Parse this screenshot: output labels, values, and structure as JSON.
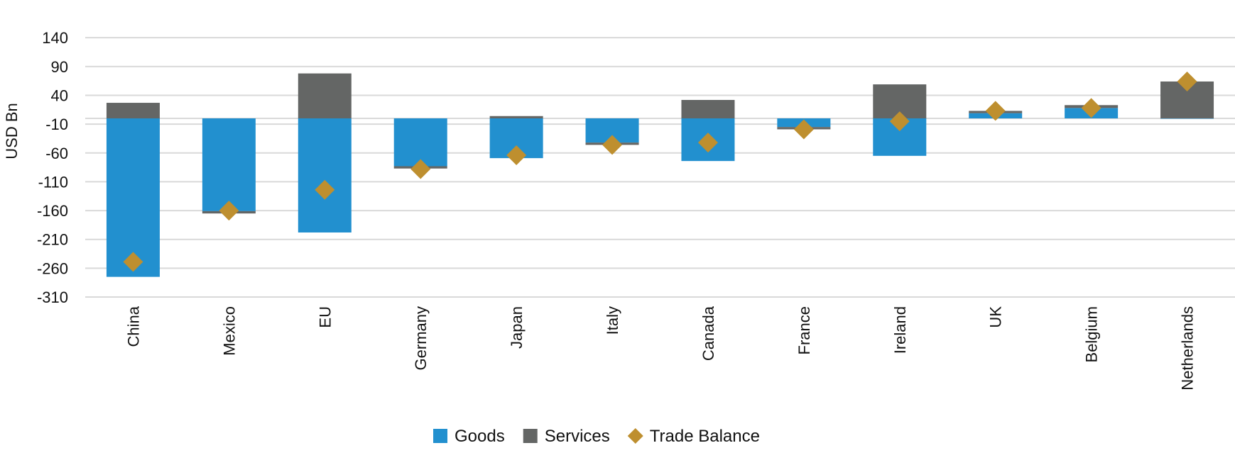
{
  "chart_data": {
    "type": "bar",
    "stacked": true,
    "title": "",
    "xlabel": "",
    "ylabel": "USD Bn",
    "ylim": [
      -310,
      140
    ],
    "yticks": [
      140,
      90,
      40,
      -10,
      -60,
      -110,
      -160,
      -210,
      -260,
      -310
    ],
    "grid": true,
    "legend_position": "bottom",
    "categories": [
      "China",
      "Mexico",
      "EU",
      "Germany",
      "Japan",
      "Italy",
      "Canada",
      "France",
      "Ireland",
      "UK",
      "Belgium",
      "Netherlands"
    ],
    "series": [
      {
        "name": "Goods",
        "kind": "bar",
        "color": "#2290cf",
        "values": [
          -275,
          -161,
          -198,
          -83,
          -69,
          -42,
          -74,
          -15,
          -65,
          9,
          18,
          0
        ]
      },
      {
        "name": "Services",
        "kind": "bar",
        "color": "#646665",
        "values": [
          27,
          -4,
          78,
          -4,
          4,
          -4,
          32,
          -4,
          59,
          4,
          5,
          64
        ]
      },
      {
        "name": "Trade Balance",
        "kind": "marker",
        "color": "#be8f2f",
        "values": [
          -249,
          -160,
          -124,
          -88,
          -64,
          -46,
          -42,
          -19,
          -5,
          13,
          18,
          64
        ]
      }
    ]
  }
}
